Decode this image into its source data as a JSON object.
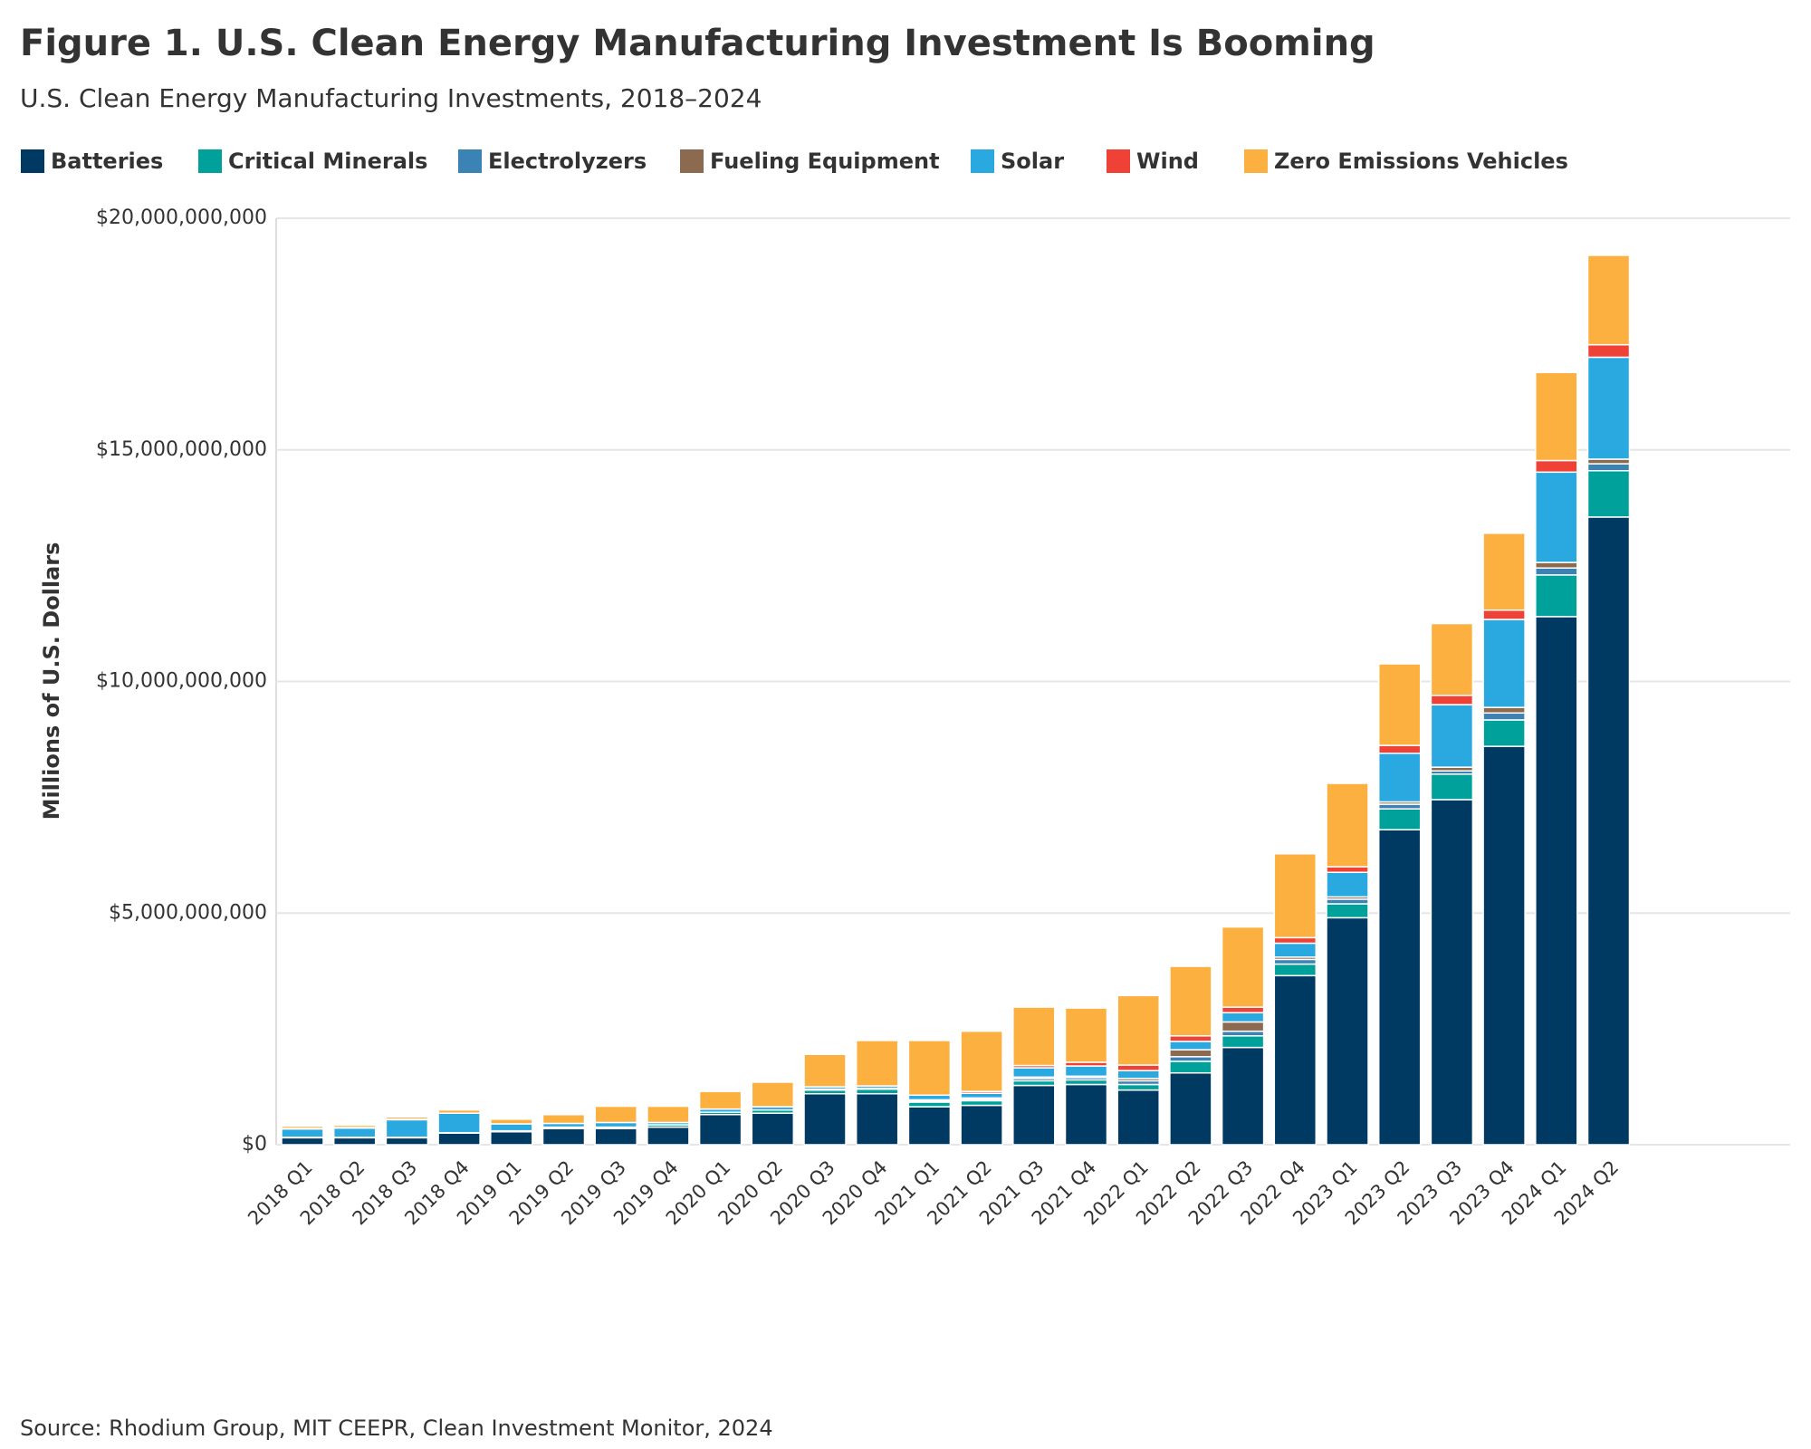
{
  "chart_data": {
    "type": "stacked-bar",
    "title": "Figure 1. U.S. Clean Energy Manufacturing Investment Is Booming",
    "subtitle": "U.S. Clean Energy Manufacturing Investments, 2018–2024",
    "y_label": "Millions of U.S. Dollars",
    "source": "Source: Rhodium Group, MIT CEEPR, Clean Investment Monitor, 2024",
    "categories": [
      "2018 Q1",
      "2018 Q2",
      "2018 Q3",
      "2018 Q4",
      "2019 Q1",
      "2019 Q2",
      "2019 Q3",
      "2019 Q4",
      "2020 Q1",
      "2020 Q2",
      "2020 Q3",
      "2020 Q4",
      "2021 Q1",
      "2021 Q2",
      "2021 Q3",
      "2021 Q4",
      "2022 Q1",
      "2022 Q2",
      "2022 Q3",
      "2022 Q4",
      "2023 Q1",
      "2023 Q2",
      "2023 Q3",
      "2023 Q4",
      "2024 Q1",
      "2024 Q2"
    ],
    "series": [
      {
        "name": "Batteries",
        "color": "#003a63",
        "values": [
          150000000.0,
          150000000.0,
          150000000.0,
          250000000.0,
          280000000.0,
          350000000.0,
          350000000.0,
          380000000.0,
          650000000.0,
          680000000.0,
          1100000000.0,
          1100000000.0,
          820000000.0,
          850000000.0,
          1280000000.0,
          1300000000.0,
          1180000000.0,
          1550000000.0,
          2100000000.0,
          3650000000.0,
          4900000000.0,
          6800000000.0,
          7450000000.0,
          8600000000.0,
          11400000000.0,
          13550000000.0
        ]
      },
      {
        "name": "Critical Minerals",
        "color": "#00a19a",
        "values": [
          10000000.0,
          10000000.0,
          10000000.0,
          10000000.0,
          20000000.0,
          30000000.0,
          30000000.0,
          50000000.0,
          50000000.0,
          70000000.0,
          80000000.0,
          100000000.0,
          100000000.0,
          100000000.0,
          100000000.0,
          100000000.0,
          120000000.0,
          250000000.0,
          250000000.0,
          250000000.0,
          300000000.0,
          450000000.0,
          550000000.0,
          570000000.0,
          900000000.0,
          1000000000.0
        ]
      },
      {
        "name": "Electrolyzers",
        "color": "#3b82b5",
        "values": [
          0,
          0,
          0,
          0,
          0,
          0,
          0,
          0,
          0,
          0,
          20000000.0,
          20000000.0,
          30000000.0,
          30000000.0,
          50000000.0,
          50000000.0,
          80000000.0,
          100000000.0,
          100000000.0,
          100000000.0,
          100000000.0,
          100000000.0,
          70000000.0,
          150000000.0,
          150000000.0,
          150000000.0
        ]
      },
      {
        "name": "Fueling Equipment",
        "color": "#8b6a50",
        "values": [
          0,
          0,
          0,
          0,
          0,
          0,
          0,
          0,
          0,
          0,
          0,
          0,
          20000000.0,
          30000000.0,
          30000000.0,
          30000000.0,
          50000000.0,
          150000000.0,
          200000000.0,
          50000000.0,
          50000000.0,
          50000000.0,
          80000000.0,
          120000000.0,
          120000000.0,
          100000000.0
        ]
      },
      {
        "name": "Solar",
        "color": "#2aa8e0",
        "values": [
          180000000.0,
          200000000.0,
          380000000.0,
          420000000.0,
          150000000.0,
          80000000.0,
          100000000.0,
          50000000.0,
          70000000.0,
          70000000.0,
          50000000.0,
          50000000.0,
          100000000.0,
          100000000.0,
          200000000.0,
          220000000.0,
          170000000.0,
          180000000.0,
          200000000.0,
          300000000.0,
          530000000.0,
          1050000000.0,
          1350000000.0,
          1900000000.0,
          1950000000.0,
          2200000000.0
        ]
      },
      {
        "name": "Wind",
        "color": "#ef4136",
        "values": [
          10000000.0,
          10000000.0,
          10000000.0,
          0,
          0,
          0,
          0,
          0,
          0,
          0,
          0,
          0,
          0,
          40000000.0,
          50000000.0,
          80000000.0,
          120000000.0,
          120000000.0,
          120000000.0,
          120000000.0,
          120000000.0,
          170000000.0,
          200000000.0,
          200000000.0,
          250000000.0,
          270000000.0
        ]
      },
      {
        "name": "Zero Emissions Vehicles",
        "color": "#fbb040",
        "values": [
          50000000.0,
          50000000.0,
          50000000.0,
          70000000.0,
          100000000.0,
          190000000.0,
          350000000.0,
          350000000.0,
          380000000.0,
          530000000.0,
          700000000.0,
          980000000.0,
          1180000000.0,
          1300000000.0,
          1260000000.0,
          1170000000.0,
          1500000000.0,
          1500000000.0,
          1730000000.0,
          1810000000.0,
          1800000000.0,
          1760000000.0,
          1550000000.0,
          1660000000.0,
          1900000000.0,
          1930000000.0
        ]
      }
    ],
    "ylim": [
      0,
      20000000000.0
    ],
    "yticks": [
      {
        "value": 0,
        "label": "$0"
      },
      {
        "value": 5000000000.0,
        "label": "$5,000,000,000"
      },
      {
        "value": 10000000000.0,
        "label": "$10,000,000,000"
      },
      {
        "value": 15000000000.0,
        "label": "$15,000,000,000"
      },
      {
        "value": 20000000000.0,
        "label": "$20,000,000,000"
      }
    ],
    "grid": true
  }
}
